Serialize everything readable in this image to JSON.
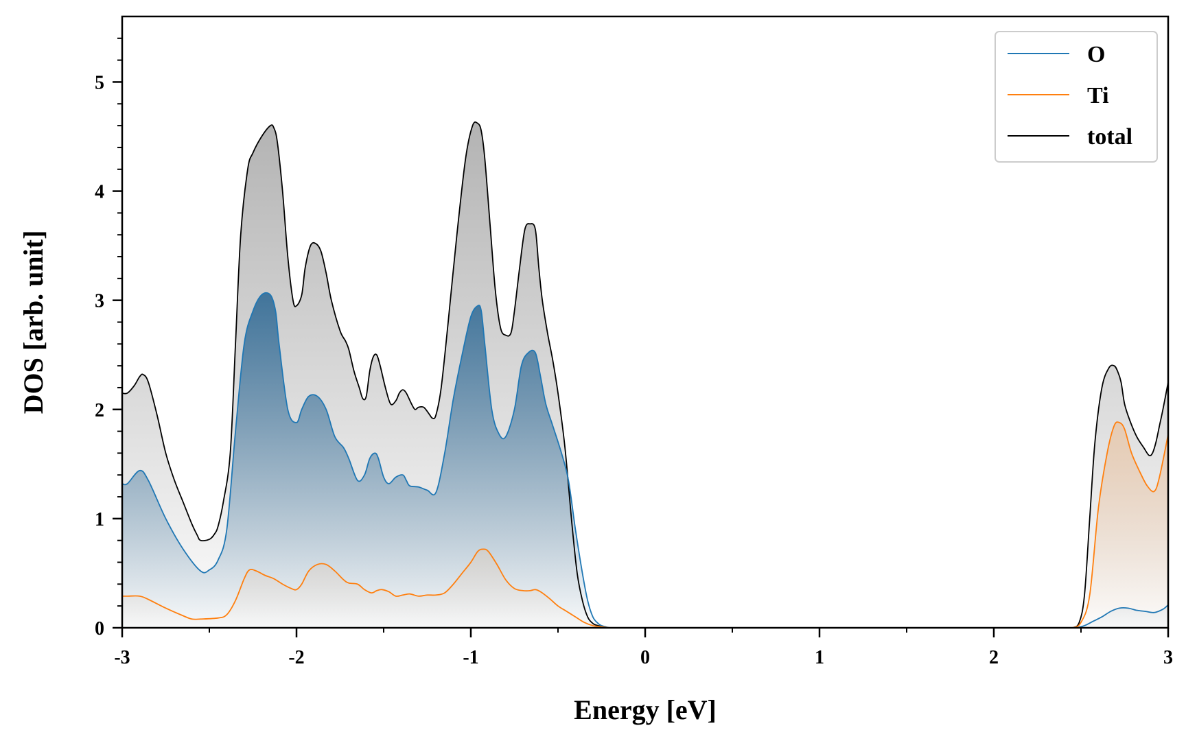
{
  "chart_data": {
    "type": "area",
    "xlabel": "Energy [eV]",
    "ylabel": "DOS [arb. unit]",
    "xlim": [
      -3,
      3
    ],
    "ylim": [
      0,
      5.6
    ],
    "x_ticks": [
      -3,
      -2,
      -1,
      0,
      1,
      2,
      3
    ],
    "x_tick_labels": [
      "-3",
      "-2",
      "-1",
      "0",
      "1",
      "2",
      "3"
    ],
    "y_ticks": [
      0,
      1,
      2,
      3,
      4,
      5
    ],
    "y_tick_labels": [
      "0",
      "1",
      "2",
      "3",
      "4",
      "5"
    ],
    "legend_position": "top-right",
    "grid": false,
    "series": [
      {
        "name": "O",
        "color": "#1f77b4",
        "fill": "#1f5f8f",
        "x": [
          -3.0,
          -2.97,
          -2.9,
          -2.85,
          -2.75,
          -2.65,
          -2.55,
          -2.5,
          -2.45,
          -2.4,
          -2.35,
          -2.3,
          -2.25,
          -2.2,
          -2.15,
          -2.12,
          -2.1,
          -2.05,
          -2.0,
          -1.97,
          -1.93,
          -1.88,
          -1.83,
          -1.78,
          -1.73,
          -1.7,
          -1.65,
          -1.61,
          -1.58,
          -1.55,
          -1.53,
          -1.5,
          -1.47,
          -1.43,
          -1.39,
          -1.37,
          -1.35,
          -1.3,
          -1.25,
          -1.2,
          -1.15,
          -1.1,
          -1.05,
          -1.0,
          -0.96,
          -0.94,
          -0.92,
          -0.88,
          -0.84,
          -0.8,
          -0.75,
          -0.71,
          -0.67,
          -0.63,
          -0.6,
          -0.57,
          -0.53,
          -0.48,
          -0.44,
          -0.4,
          -0.36,
          -0.33,
          -0.3,
          -0.27,
          -0.25,
          -0.23,
          -0.2,
          -0.15,
          -0.1,
          2.4,
          2.47,
          2.52,
          2.57,
          2.62,
          2.67,
          2.72,
          2.77,
          2.82,
          2.87,
          2.92,
          2.97,
          3.0
        ],
        "values": [
          1.32,
          1.32,
          1.44,
          1.35,
          1.0,
          0.72,
          0.52,
          0.53,
          0.62,
          0.9,
          1.8,
          2.6,
          2.9,
          3.05,
          3.05,
          2.9,
          2.6,
          2.0,
          1.88,
          2.0,
          2.12,
          2.12,
          2.0,
          1.75,
          1.65,
          1.55,
          1.35,
          1.4,
          1.55,
          1.6,
          1.55,
          1.38,
          1.32,
          1.38,
          1.4,
          1.35,
          1.3,
          1.29,
          1.26,
          1.24,
          1.6,
          2.1,
          2.5,
          2.85,
          2.95,
          2.9,
          2.6,
          2.0,
          1.78,
          1.75,
          2.0,
          2.4,
          2.52,
          2.52,
          2.3,
          2.05,
          1.85,
          1.6,
          1.35,
          0.9,
          0.5,
          0.25,
          0.1,
          0.04,
          0.02,
          0.01,
          0.0,
          0.0,
          0.0,
          0.0,
          0.0,
          0.02,
          0.06,
          0.1,
          0.15,
          0.18,
          0.18,
          0.16,
          0.15,
          0.14,
          0.17,
          0.21
        ]
      },
      {
        "name": "Ti",
        "color": "#ff7f0e",
        "fill": "#e8c6a8",
        "x": [
          -3.0,
          -2.97,
          -2.9,
          -2.85,
          -2.75,
          -2.65,
          -2.6,
          -2.55,
          -2.45,
          -2.4,
          -2.35,
          -2.3,
          -2.27,
          -2.23,
          -2.18,
          -2.13,
          -2.08,
          -2.03,
          -2.0,
          -1.97,
          -1.93,
          -1.88,
          -1.83,
          -1.78,
          -1.73,
          -1.7,
          -1.65,
          -1.61,
          -1.57,
          -1.54,
          -1.51,
          -1.47,
          -1.43,
          -1.39,
          -1.35,
          -1.3,
          -1.25,
          -1.2,
          -1.15,
          -1.1,
          -1.05,
          -1.0,
          -0.96,
          -0.93,
          -0.9,
          -0.85,
          -0.8,
          -0.75,
          -0.7,
          -0.66,
          -0.63,
          -0.6,
          -0.55,
          -0.5,
          -0.45,
          -0.4,
          -0.35,
          -0.3,
          -0.25,
          -0.2,
          -0.1,
          2.4,
          2.45,
          2.5,
          2.55,
          2.6,
          2.65,
          2.69,
          2.72,
          2.75,
          2.79,
          2.84,
          2.88,
          2.92,
          2.95,
          3.0
        ],
        "values": [
          0.29,
          0.29,
          0.29,
          0.26,
          0.18,
          0.11,
          0.08,
          0.08,
          0.09,
          0.12,
          0.25,
          0.45,
          0.53,
          0.52,
          0.48,
          0.45,
          0.4,
          0.36,
          0.35,
          0.4,
          0.52,
          0.58,
          0.58,
          0.52,
          0.44,
          0.41,
          0.4,
          0.35,
          0.32,
          0.34,
          0.35,
          0.33,
          0.29,
          0.3,
          0.31,
          0.29,
          0.3,
          0.3,
          0.32,
          0.4,
          0.5,
          0.6,
          0.7,
          0.72,
          0.7,
          0.58,
          0.44,
          0.36,
          0.34,
          0.34,
          0.35,
          0.33,
          0.27,
          0.2,
          0.15,
          0.1,
          0.05,
          0.02,
          0.01,
          0.0,
          0.0,
          0.0,
          0.0,
          0.05,
          0.3,
          1.1,
          1.6,
          1.85,
          1.88,
          1.82,
          1.6,
          1.42,
          1.3,
          1.25,
          1.38,
          1.77
        ]
      },
      {
        "name": "total",
        "color": "#000000",
        "fill": "#9a9a9a",
        "x": [
          -3.0,
          -2.97,
          -2.93,
          -2.9,
          -2.88,
          -2.85,
          -2.8,
          -2.75,
          -2.7,
          -2.65,
          -2.6,
          -2.57,
          -2.55,
          -2.5,
          -2.47,
          -2.45,
          -2.42,
          -2.38,
          -2.35,
          -2.32,
          -2.28,
          -2.25,
          -2.2,
          -2.15,
          -2.13,
          -2.11,
          -2.08,
          -2.05,
          -2.02,
          -2.0,
          -1.97,
          -1.95,
          -1.92,
          -1.89,
          -1.86,
          -1.83,
          -1.8,
          -1.75,
          -1.72,
          -1.7,
          -1.67,
          -1.64,
          -1.62,
          -1.6,
          -1.58,
          -1.56,
          -1.54,
          -1.52,
          -1.49,
          -1.46,
          -1.43,
          -1.41,
          -1.39,
          -1.37,
          -1.34,
          -1.32,
          -1.3,
          -1.27,
          -1.24,
          -1.22,
          -1.2,
          -1.17,
          -1.13,
          -1.08,
          -1.03,
          -0.99,
          -0.96,
          -0.94,
          -0.92,
          -0.89,
          -0.86,
          -0.83,
          -0.8,
          -0.77,
          -0.75,
          -0.72,
          -0.69,
          -0.66,
          -0.63,
          -0.61,
          -0.59,
          -0.56,
          -0.53,
          -0.5,
          -0.46,
          -0.42,
          -0.39,
          -0.36,
          -0.33,
          -0.3,
          -0.27,
          -0.24,
          -0.21,
          -0.17,
          -0.1,
          2.4,
          2.45,
          2.49,
          2.52,
          2.55,
          2.58,
          2.62,
          2.66,
          2.69,
          2.71,
          2.73,
          2.75,
          2.78,
          2.82,
          2.86,
          2.89,
          2.91,
          2.93,
          2.95,
          2.97,
          3.0
        ],
        "values": [
          2.15,
          2.15,
          2.22,
          2.3,
          2.32,
          2.25,
          1.95,
          1.6,
          1.35,
          1.15,
          0.95,
          0.85,
          0.8,
          0.81,
          0.86,
          0.93,
          1.15,
          1.6,
          2.6,
          3.6,
          4.2,
          4.35,
          4.5,
          4.6,
          4.58,
          4.45,
          4.0,
          3.4,
          3.0,
          2.95,
          3.05,
          3.3,
          3.5,
          3.52,
          3.45,
          3.25,
          3.0,
          2.72,
          2.63,
          2.55,
          2.35,
          2.2,
          2.1,
          2.12,
          2.35,
          2.48,
          2.5,
          2.4,
          2.2,
          2.05,
          2.08,
          2.15,
          2.18,
          2.15,
          2.05,
          2.0,
          2.02,
          2.02,
          1.96,
          1.92,
          1.95,
          2.2,
          2.8,
          3.6,
          4.3,
          4.6,
          4.62,
          4.55,
          4.3,
          3.7,
          3.1,
          2.75,
          2.68,
          2.7,
          2.9,
          3.3,
          3.65,
          3.7,
          3.65,
          3.3,
          3.0,
          2.7,
          2.45,
          2.15,
          1.65,
          0.95,
          0.5,
          0.25,
          0.1,
          0.04,
          0.02,
          0.01,
          0.0,
          0.0,
          0.0,
          0.0,
          0.0,
          0.05,
          0.3,
          1.0,
          1.7,
          2.2,
          2.38,
          2.4,
          2.35,
          2.25,
          2.05,
          1.9,
          1.75,
          1.65,
          1.58,
          1.6,
          1.7,
          1.85,
          2.0,
          2.25
        ]
      }
    ]
  }
}
